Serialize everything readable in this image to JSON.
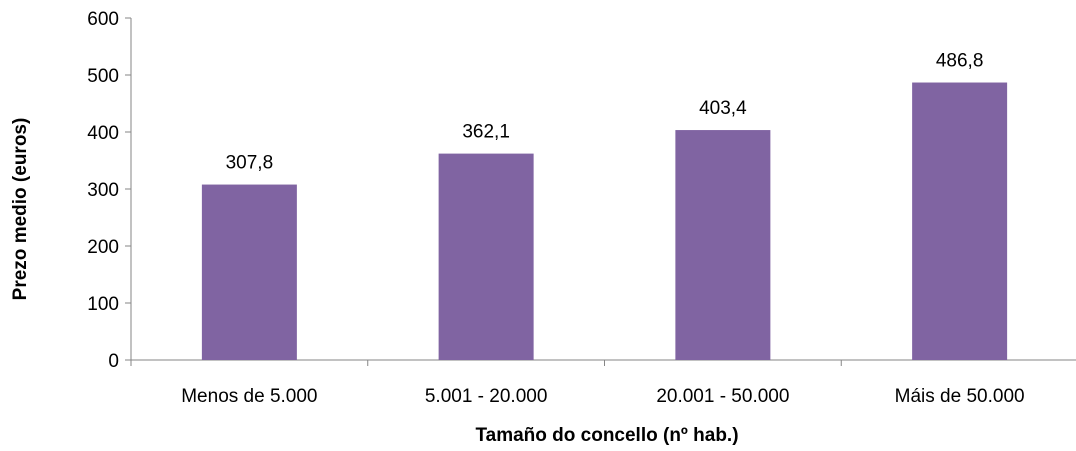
{
  "chart_data": {
    "type": "bar",
    "categories": [
      "Menos de 5.000",
      "5.001 - 20.000",
      "20.001 - 50.000",
      "Máis de 50.000"
    ],
    "values": [
      307.8,
      362.1,
      403.4,
      486.8
    ],
    "data_labels": [
      "307,8",
      "362,1",
      "403,4",
      "486,8"
    ],
    "title": "",
    "xlabel": "Tamaño do concello (nº hab.)",
    "ylabel": "Prezo medio (euros)",
    "ylim": [
      0,
      600
    ],
    "yticks": [
      0,
      100,
      200,
      300,
      400,
      500,
      600
    ],
    "ytick_labels": [
      "0",
      "100",
      "200",
      "300",
      "400",
      "500",
      "600"
    ],
    "grid": false,
    "legend": "none",
    "colors": {
      "bar": "#8064A2",
      "axis": "#868686"
    }
  }
}
